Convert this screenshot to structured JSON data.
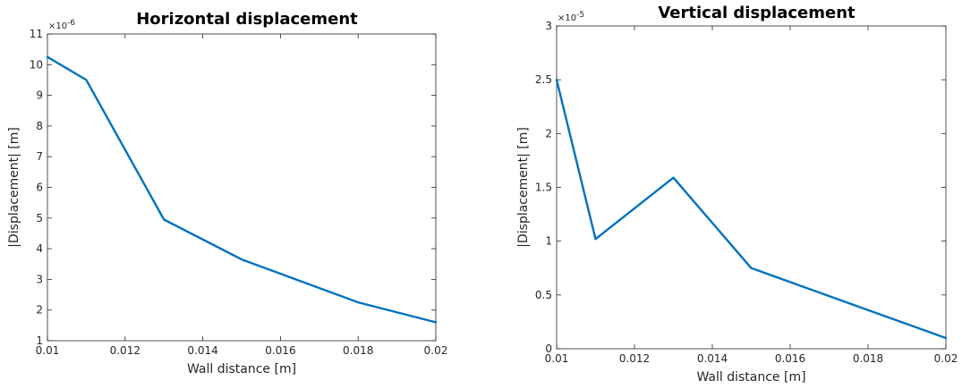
{
  "chart_data": [
    {
      "type": "line",
      "title": "Horizontal displacement",
      "xlabel": "Wall distance [m]",
      "ylabel": "|Displacement| [m]",
      "y_multiplier": "×10",
      "y_multiplier_exp": "-6",
      "xlim": [
        0.01,
        0.02
      ],
      "ylim": [
        1,
        11
      ],
      "x_ticks": [
        "0.01",
        "0.012",
        "0.014",
        "0.016",
        "0.018",
        "0.02"
      ],
      "y_ticks": [
        "1",
        "2",
        "3",
        "4",
        "5",
        "6",
        "7",
        "8",
        "9",
        "10",
        "11"
      ],
      "grid": false,
      "series": [
        {
          "color": "#0072BD",
          "x": [
            0.01,
            0.011,
            0.013,
            0.015,
            0.018,
            0.02
          ],
          "y": [
            10.25,
            9.5,
            4.95,
            3.65,
            2.25,
            1.6
          ]
        }
      ]
    },
    {
      "type": "line",
      "title": "Vertical displacement",
      "xlabel": "Wall distance [m]",
      "ylabel": "|Displacement| [m]",
      "y_multiplier": "×10",
      "y_multiplier_exp": "-5",
      "xlim": [
        0.01,
        0.02
      ],
      "ylim": [
        0,
        3
      ],
      "x_ticks": [
        "0.01",
        "0.012",
        "0.014",
        "0.016",
        "0.018",
        "0.02"
      ],
      "y_ticks": [
        "0",
        "0.5",
        "1",
        "1.5",
        "2",
        "2.5",
        "3"
      ],
      "grid": false,
      "series": [
        {
          "color": "#0072BD",
          "x": [
            0.01,
            0.011,
            0.013,
            0.015,
            0.018,
            0.02
          ],
          "y": [
            2.5,
            1.02,
            1.59,
            0.75,
            0.36,
            0.1
          ]
        }
      ]
    }
  ]
}
